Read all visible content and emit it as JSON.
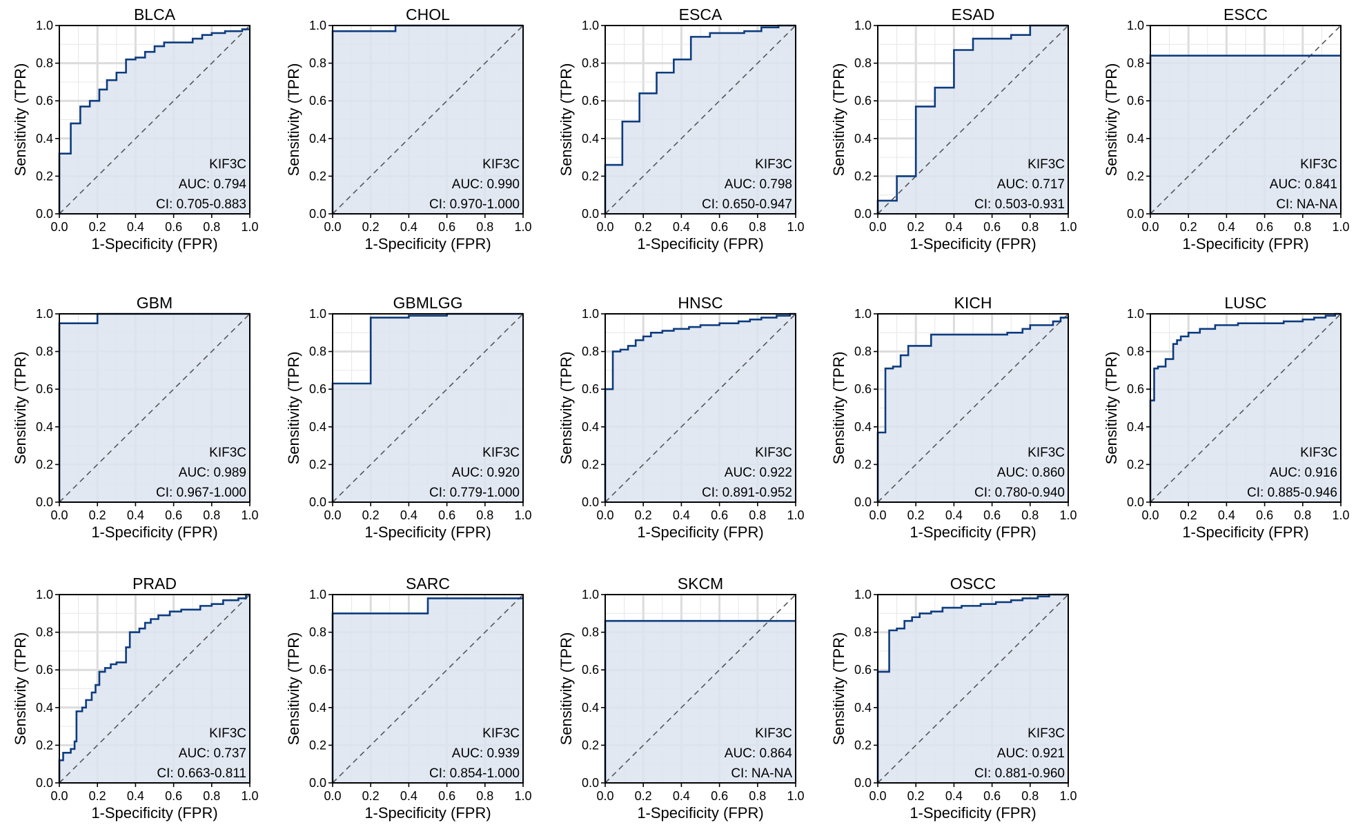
{
  "style": {
    "line_color": "#0d3b7e",
    "fill_color": "#dce4f0",
    "diagonal_color": "#555555"
  },
  "axis": {
    "xlabel": "1-Specificity (FPR)",
    "ylabel": "Sensitivity (TPR)",
    "ticks": [
      "0.0",
      "0.2",
      "0.4",
      "0.6",
      "0.8",
      "1.0"
    ]
  },
  "chart_data": [
    {
      "type": "line",
      "title": "BLCA",
      "gene": "KIF3C",
      "auc_text": "AUC: 0.794",
      "ci_text": "CI: 0.705-0.883",
      "xlabel": "1-Specificity (FPR)",
      "ylabel": "Sensitivity (TPR)",
      "xlim": [
        0,
        1
      ],
      "ylim": [
        0,
        1
      ],
      "grid": true,
      "points": [
        [
          0,
          0
        ],
        [
          0,
          0.32
        ],
        [
          0.06,
          0.32
        ],
        [
          0.06,
          0.48
        ],
        [
          0.11,
          0.48
        ],
        [
          0.11,
          0.57
        ],
        [
          0.16,
          0.57
        ],
        [
          0.16,
          0.6
        ],
        [
          0.21,
          0.6
        ],
        [
          0.21,
          0.66
        ],
        [
          0.25,
          0.66
        ],
        [
          0.25,
          0.71
        ],
        [
          0.3,
          0.71
        ],
        [
          0.3,
          0.75
        ],
        [
          0.35,
          0.75
        ],
        [
          0.35,
          0.82
        ],
        [
          0.4,
          0.82
        ],
        [
          0.4,
          0.83
        ],
        [
          0.45,
          0.83
        ],
        [
          0.45,
          0.86
        ],
        [
          0.5,
          0.86
        ],
        [
          0.5,
          0.89
        ],
        [
          0.55,
          0.89
        ],
        [
          0.55,
          0.91
        ],
        [
          0.7,
          0.91
        ],
        [
          0.7,
          0.93
        ],
        [
          0.75,
          0.93
        ],
        [
          0.75,
          0.95
        ],
        [
          0.8,
          0.95
        ],
        [
          0.8,
          0.96
        ],
        [
          0.87,
          0.96
        ],
        [
          0.87,
          0.97
        ],
        [
          0.96,
          0.97
        ],
        [
          0.96,
          0.98
        ],
        [
          1,
          0.98
        ]
      ]
    },
    {
      "type": "line",
      "title": "CHOL",
      "gene": "KIF3C",
      "auc_text": "AUC: 0.990",
      "ci_text": "CI: 0.970-1.000",
      "xlabel": "1-Specificity (FPR)",
      "ylabel": "Sensitivity (TPR)",
      "xlim": [
        0,
        1
      ],
      "ylim": [
        0,
        1
      ],
      "grid": true,
      "points": [
        [
          0,
          0
        ],
        [
          0,
          0.97
        ],
        [
          0.33,
          0.97
        ],
        [
          0.33,
          1.0
        ],
        [
          1,
          1.0
        ]
      ]
    },
    {
      "type": "line",
      "title": "ESCA",
      "gene": "KIF3C",
      "auc_text": "AUC: 0.798",
      "ci_text": "CI: 0.650-0.947",
      "xlabel": "1-Specificity (FPR)",
      "ylabel": "Sensitivity (TPR)",
      "xlim": [
        0,
        1
      ],
      "ylim": [
        0,
        1
      ],
      "grid": true,
      "points": [
        [
          0,
          0
        ],
        [
          0,
          0.26
        ],
        [
          0.09,
          0.26
        ],
        [
          0.09,
          0.49
        ],
        [
          0.18,
          0.49
        ],
        [
          0.18,
          0.64
        ],
        [
          0.27,
          0.64
        ],
        [
          0.27,
          0.75
        ],
        [
          0.36,
          0.75
        ],
        [
          0.36,
          0.82
        ],
        [
          0.45,
          0.82
        ],
        [
          0.45,
          0.94
        ],
        [
          0.55,
          0.94
        ],
        [
          0.55,
          0.96
        ],
        [
          0.73,
          0.96
        ],
        [
          0.73,
          0.97
        ],
        [
          0.82,
          0.97
        ],
        [
          0.82,
          0.99
        ],
        [
          0.91,
          0.99
        ],
        [
          0.91,
          1.0
        ],
        [
          1,
          1.0
        ]
      ]
    },
    {
      "type": "line",
      "title": "ESAD",
      "gene": "KIF3C",
      "auc_text": "AUC: 0.717",
      "ci_text": "CI: 0.503-0.931",
      "xlabel": "1-Specificity (FPR)",
      "ylabel": "Sensitivity (TPR)",
      "xlim": [
        0,
        1
      ],
      "ylim": [
        0,
        1
      ],
      "grid": true,
      "points": [
        [
          0,
          0
        ],
        [
          0,
          0.07
        ],
        [
          0.1,
          0.07
        ],
        [
          0.1,
          0.2
        ],
        [
          0.2,
          0.2
        ],
        [
          0.2,
          0.57
        ],
        [
          0.3,
          0.57
        ],
        [
          0.3,
          0.67
        ],
        [
          0.4,
          0.67
        ],
        [
          0.4,
          0.87
        ],
        [
          0.5,
          0.87
        ],
        [
          0.5,
          0.93
        ],
        [
          0.7,
          0.93
        ],
        [
          0.7,
          0.95
        ],
        [
          0.8,
          0.95
        ],
        [
          0.8,
          1.0
        ],
        [
          1,
          1.0
        ]
      ]
    },
    {
      "type": "line",
      "title": "ESCC",
      "gene": "KIF3C",
      "auc_text": "AUC: 0.841",
      "ci_text": "CI: NA-NA",
      "xlabel": "1-Specificity (FPR)",
      "ylabel": "Sensitivity (TPR)",
      "xlim": [
        0,
        1
      ],
      "ylim": [
        0,
        1
      ],
      "grid": true,
      "points": [
        [
          0,
          0
        ],
        [
          0,
          0.84
        ],
        [
          1,
          0.84
        ]
      ]
    },
    {
      "type": "line",
      "title": "GBM",
      "gene": "KIF3C",
      "auc_text": "AUC: 0.989",
      "ci_text": "CI: 0.967-1.000",
      "xlabel": "1-Specificity (FPR)",
      "ylabel": "Sensitivity (TPR)",
      "xlim": [
        0,
        1
      ],
      "ylim": [
        0,
        1
      ],
      "grid": true,
      "points": [
        [
          0,
          0
        ],
        [
          0,
          0.95
        ],
        [
          0.2,
          0.95
        ],
        [
          0.2,
          1.0
        ],
        [
          1,
          1.0
        ]
      ]
    },
    {
      "type": "line",
      "title": "GBMLGG",
      "gene": "KIF3C",
      "auc_text": "AUC: 0.920",
      "ci_text": "CI: 0.779-1.000",
      "xlabel": "1-Specificity (FPR)",
      "ylabel": "Sensitivity (TPR)",
      "xlim": [
        0,
        1
      ],
      "ylim": [
        0,
        1
      ],
      "grid": true,
      "points": [
        [
          0,
          0
        ],
        [
          0,
          0.63
        ],
        [
          0.2,
          0.63
        ],
        [
          0.2,
          0.98
        ],
        [
          0.4,
          0.98
        ],
        [
          0.4,
          0.99
        ],
        [
          0.6,
          0.99
        ],
        [
          0.6,
          1.0
        ],
        [
          1,
          1.0
        ]
      ]
    },
    {
      "type": "line",
      "title": "HNSC",
      "gene": "KIF3C",
      "auc_text": "AUC: 0.922",
      "ci_text": "CI: 0.891-0.952",
      "xlabel": "1-Specificity (FPR)",
      "ylabel": "Sensitivity (TPR)",
      "xlim": [
        0,
        1
      ],
      "ylim": [
        0,
        1
      ],
      "grid": true,
      "points": [
        [
          0,
          0
        ],
        [
          0,
          0.6
        ],
        [
          0.04,
          0.6
        ],
        [
          0.04,
          0.8
        ],
        [
          0.08,
          0.8
        ],
        [
          0.08,
          0.81
        ],
        [
          0.12,
          0.81
        ],
        [
          0.12,
          0.83
        ],
        [
          0.16,
          0.83
        ],
        [
          0.16,
          0.86
        ],
        [
          0.2,
          0.86
        ],
        [
          0.2,
          0.88
        ],
        [
          0.24,
          0.88
        ],
        [
          0.24,
          0.9
        ],
        [
          0.3,
          0.9
        ],
        [
          0.3,
          0.91
        ],
        [
          0.36,
          0.91
        ],
        [
          0.36,
          0.92
        ],
        [
          0.44,
          0.92
        ],
        [
          0.44,
          0.93
        ],
        [
          0.5,
          0.93
        ],
        [
          0.5,
          0.94
        ],
        [
          0.6,
          0.94
        ],
        [
          0.6,
          0.95
        ],
        [
          0.7,
          0.95
        ],
        [
          0.7,
          0.96
        ],
        [
          0.76,
          0.96
        ],
        [
          0.76,
          0.97
        ],
        [
          0.82,
          0.97
        ],
        [
          0.82,
          0.98
        ],
        [
          0.9,
          0.98
        ],
        [
          0.9,
          0.99
        ],
        [
          0.97,
          0.99
        ],
        [
          0.97,
          1.0
        ],
        [
          1,
          1.0
        ]
      ]
    },
    {
      "type": "line",
      "title": "KICH",
      "gene": "KIF3C",
      "auc_text": "AUC: 0.860",
      "ci_text": "CI: 0.780-0.940",
      "xlabel": "1-Specificity (FPR)",
      "ylabel": "Sensitivity (TPR)",
      "xlim": [
        0,
        1
      ],
      "ylim": [
        0,
        1
      ],
      "grid": true,
      "points": [
        [
          0,
          0
        ],
        [
          0,
          0.37
        ],
        [
          0.04,
          0.37
        ],
        [
          0.04,
          0.71
        ],
        [
          0.08,
          0.71
        ],
        [
          0.08,
          0.72
        ],
        [
          0.12,
          0.72
        ],
        [
          0.12,
          0.78
        ],
        [
          0.16,
          0.78
        ],
        [
          0.16,
          0.83
        ],
        [
          0.28,
          0.83
        ],
        [
          0.28,
          0.89
        ],
        [
          0.68,
          0.89
        ],
        [
          0.68,
          0.9
        ],
        [
          0.76,
          0.9
        ],
        [
          0.76,
          0.92
        ],
        [
          0.8,
          0.92
        ],
        [
          0.8,
          0.94
        ],
        [
          0.92,
          0.94
        ],
        [
          0.92,
          0.96
        ],
        [
          0.96,
          0.96
        ],
        [
          0.96,
          0.98
        ],
        [
          1,
          0.98
        ]
      ]
    },
    {
      "type": "line",
      "title": "LUSC",
      "gene": "KIF3C",
      "auc_text": "AUC: 0.916",
      "ci_text": "CI: 0.885-0.946",
      "xlabel": "1-Specificity (FPR)",
      "ylabel": "Sensitivity (TPR)",
      "xlim": [
        0,
        1
      ],
      "ylim": [
        0,
        1
      ],
      "grid": true,
      "points": [
        [
          0,
          0
        ],
        [
          0,
          0.54
        ],
        [
          0.02,
          0.54
        ],
        [
          0.02,
          0.71
        ],
        [
          0.04,
          0.71
        ],
        [
          0.04,
          0.72
        ],
        [
          0.08,
          0.72
        ],
        [
          0.08,
          0.76
        ],
        [
          0.12,
          0.76
        ],
        [
          0.12,
          0.84
        ],
        [
          0.14,
          0.84
        ],
        [
          0.14,
          0.86
        ],
        [
          0.16,
          0.86
        ],
        [
          0.16,
          0.88
        ],
        [
          0.2,
          0.88
        ],
        [
          0.2,
          0.9
        ],
        [
          0.26,
          0.9
        ],
        [
          0.26,
          0.92
        ],
        [
          0.34,
          0.92
        ],
        [
          0.34,
          0.94
        ],
        [
          0.46,
          0.94
        ],
        [
          0.46,
          0.95
        ],
        [
          0.7,
          0.95
        ],
        [
          0.7,
          0.96
        ],
        [
          0.8,
          0.96
        ],
        [
          0.8,
          0.97
        ],
        [
          0.86,
          0.97
        ],
        [
          0.86,
          0.98
        ],
        [
          0.92,
          0.98
        ],
        [
          0.92,
          0.99
        ],
        [
          0.97,
          0.99
        ],
        [
          0.97,
          1.0
        ],
        [
          1,
          1.0
        ]
      ]
    },
    {
      "type": "line",
      "title": "PRAD",
      "gene": "KIF3C",
      "auc_text": "AUC: 0.737",
      "ci_text": "CI: 0.663-0.811",
      "xlabel": "1-Specificity (FPR)",
      "ylabel": "Sensitivity (TPR)",
      "xlim": [
        0,
        1
      ],
      "ylim": [
        0,
        1
      ],
      "grid": true,
      "points": [
        [
          0,
          0
        ],
        [
          0,
          0.12
        ],
        [
          0.02,
          0.12
        ],
        [
          0.02,
          0.16
        ],
        [
          0.06,
          0.16
        ],
        [
          0.06,
          0.18
        ],
        [
          0.08,
          0.18
        ],
        [
          0.08,
          0.22
        ],
        [
          0.09,
          0.22
        ],
        [
          0.09,
          0.38
        ],
        [
          0.12,
          0.38
        ],
        [
          0.12,
          0.4
        ],
        [
          0.14,
          0.4
        ],
        [
          0.14,
          0.44
        ],
        [
          0.17,
          0.44
        ],
        [
          0.17,
          0.48
        ],
        [
          0.19,
          0.48
        ],
        [
          0.19,
          0.52
        ],
        [
          0.21,
          0.52
        ],
        [
          0.21,
          0.59
        ],
        [
          0.24,
          0.59
        ],
        [
          0.24,
          0.61
        ],
        [
          0.27,
          0.61
        ],
        [
          0.27,
          0.63
        ],
        [
          0.3,
          0.63
        ],
        [
          0.3,
          0.64
        ],
        [
          0.35,
          0.64
        ],
        [
          0.35,
          0.72
        ],
        [
          0.37,
          0.72
        ],
        [
          0.37,
          0.8
        ],
        [
          0.42,
          0.8
        ],
        [
          0.42,
          0.82
        ],
        [
          0.45,
          0.82
        ],
        [
          0.45,
          0.85
        ],
        [
          0.48,
          0.85
        ],
        [
          0.48,
          0.87
        ],
        [
          0.52,
          0.87
        ],
        [
          0.52,
          0.89
        ],
        [
          0.58,
          0.89
        ],
        [
          0.58,
          0.91
        ],
        [
          0.64,
          0.91
        ],
        [
          0.64,
          0.92
        ],
        [
          0.74,
          0.92
        ],
        [
          0.74,
          0.94
        ],
        [
          0.8,
          0.94
        ],
        [
          0.8,
          0.95
        ],
        [
          0.86,
          0.95
        ],
        [
          0.86,
          0.97
        ],
        [
          0.94,
          0.97
        ],
        [
          0.94,
          0.98
        ],
        [
          0.98,
          0.98
        ],
        [
          0.98,
          1.0
        ],
        [
          1,
          1.0
        ]
      ]
    },
    {
      "type": "line",
      "title": "SARC",
      "gene": "KIF3C",
      "auc_text": "AUC: 0.939",
      "ci_text": "CI: 0.854-1.000",
      "xlabel": "1-Specificity (FPR)",
      "ylabel": "Sensitivity (TPR)",
      "xlim": [
        0,
        1
      ],
      "ylim": [
        0,
        1
      ],
      "grid": true,
      "points": [
        [
          0,
          0
        ],
        [
          0,
          0.9
        ],
        [
          0.5,
          0.9
        ],
        [
          0.5,
          0.98
        ],
        [
          1,
          0.98
        ]
      ]
    },
    {
      "type": "line",
      "title": "SKCM",
      "gene": "KIF3C",
      "auc_text": "AUC: 0.864",
      "ci_text": "CI: NA-NA",
      "xlabel": "1-Specificity (FPR)",
      "ylabel": "Sensitivity (TPR)",
      "xlim": [
        0,
        1
      ],
      "ylim": [
        0,
        1
      ],
      "grid": true,
      "points": [
        [
          0,
          0
        ],
        [
          0,
          0.86
        ],
        [
          1,
          0.86
        ]
      ]
    },
    {
      "type": "line",
      "title": "OSCC",
      "gene": "KIF3C",
      "auc_text": "AUC: 0.921",
      "ci_text": "CI: 0.881-0.960",
      "xlabel": "1-Specificity (FPR)",
      "ylabel": "Sensitivity (TPR)",
      "xlim": [
        0,
        1
      ],
      "ylim": [
        0,
        1
      ],
      "grid": true,
      "points": [
        [
          0,
          0
        ],
        [
          0,
          0.59
        ],
        [
          0.06,
          0.59
        ],
        [
          0.06,
          0.81
        ],
        [
          0.1,
          0.81
        ],
        [
          0.1,
          0.82
        ],
        [
          0.14,
          0.82
        ],
        [
          0.14,
          0.86
        ],
        [
          0.18,
          0.86
        ],
        [
          0.18,
          0.88
        ],
        [
          0.22,
          0.88
        ],
        [
          0.22,
          0.9
        ],
        [
          0.28,
          0.9
        ],
        [
          0.28,
          0.91
        ],
        [
          0.34,
          0.91
        ],
        [
          0.34,
          0.93
        ],
        [
          0.44,
          0.93
        ],
        [
          0.44,
          0.94
        ],
        [
          0.54,
          0.94
        ],
        [
          0.54,
          0.95
        ],
        [
          0.62,
          0.95
        ],
        [
          0.62,
          0.96
        ],
        [
          0.7,
          0.96
        ],
        [
          0.7,
          0.97
        ],
        [
          0.76,
          0.97
        ],
        [
          0.76,
          0.98
        ],
        [
          0.84,
          0.98
        ],
        [
          0.84,
          0.99
        ],
        [
          0.9,
          0.99
        ],
        [
          0.9,
          1.0
        ],
        [
          1,
          1.0
        ]
      ]
    }
  ]
}
